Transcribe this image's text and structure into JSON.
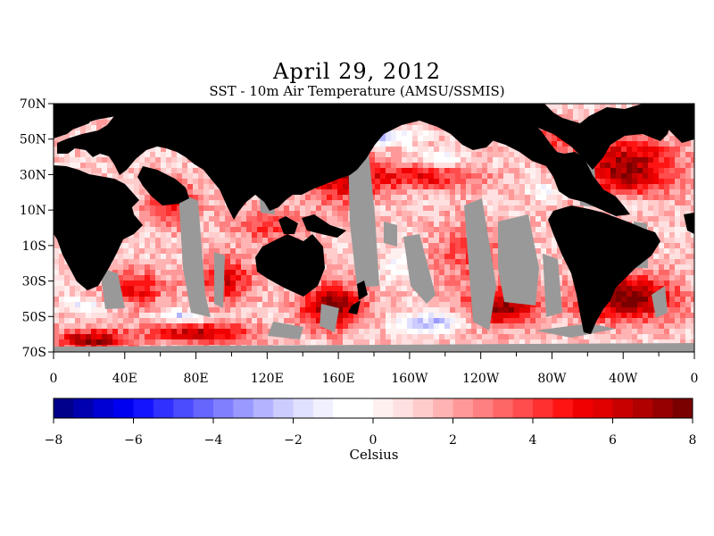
{
  "title": "April 29, 2012",
  "subtitle": "SST - 10m Air Temperature (AMSU/SSMIS)",
  "map": {
    "lon_range": [
      0,
      360
    ],
    "lat_range": [
      -70,
      70
    ],
    "lat_ticks": [
      "70N",
      "50N",
      "30N",
      "10N",
      "10S",
      "30S",
      "50S",
      "70S"
    ],
    "lon_ticks": [
      "0",
      "40E",
      "80E",
      "120E",
      "160E",
      "160W",
      "120W",
      "80W",
      "40W",
      "0"
    ],
    "colors": {
      "land": "#000000",
      "no_data": "#999999"
    }
  },
  "colorbar": {
    "min": -8,
    "max": 8,
    "step": 0.5,
    "tick_labels": [
      "-8",
      "-6",
      "-4",
      "-2",
      "0",
      "2",
      "4",
      "6",
      "8"
    ],
    "label": "Celsius",
    "colors": [
      "#00008B",
      "#0000B0",
      "#0000D4",
      "#0000F0",
      "#1414FF",
      "#3030FF",
      "#4C4CFF",
      "#6666FF",
      "#8080FF",
      "#9999FF",
      "#B3B3FF",
      "#CCCCFF",
      "#E0E0FF",
      "#F0F0FF",
      "#FFFFFF",
      "#FFFFFF",
      "#FFF0F0",
      "#FFE0E0",
      "#FFCCCC",
      "#FFB3B3",
      "#FF9999",
      "#FF8080",
      "#FF6666",
      "#FF4C4C",
      "#FF3030",
      "#FF1414",
      "#F00000",
      "#E00000",
      "#C80000",
      "#B00000",
      "#960000",
      "#7A0000"
    ]
  }
}
